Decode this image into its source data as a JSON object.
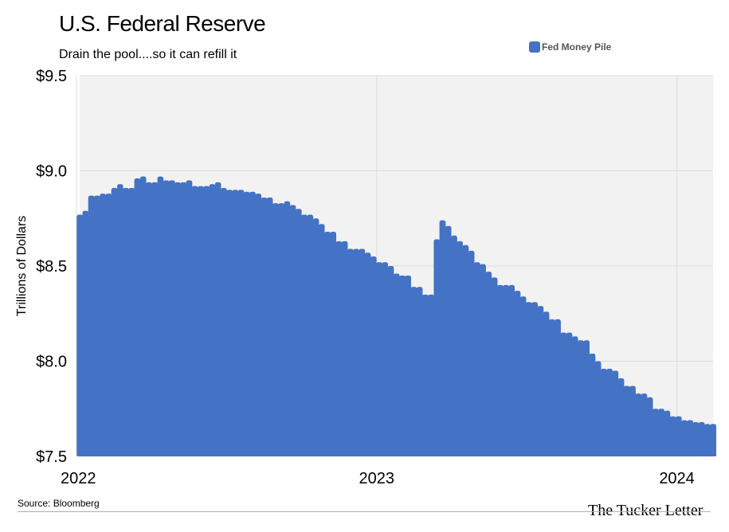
{
  "header": {
    "title": "U.S. Federal Reserve",
    "subtitle": "Drain the pool....so it can refill it"
  },
  "footer": {
    "source": "Source: Bloomberg",
    "brand": "The Tucker Letter"
  },
  "colors": {
    "series": "#4472c4",
    "plot_background": "#f2f2f2",
    "grid": "#dcdcdc"
  },
  "chart_data": {
    "type": "bar",
    "title": "U.S. Federal Reserve",
    "subtitle": "Drain the pool....so it can refill it",
    "ylabel": "Trillions of Dollars",
    "xlabel": "",
    "ylim": [
      7.5,
      9.5
    ],
    "yticks": [
      7.5,
      8.0,
      8.5,
      9.0,
      9.5
    ],
    "ytick_labels": [
      "$7.5",
      "$8.0",
      "$8.5",
      "$9.0",
      "$9.5"
    ],
    "xticks": [
      "2022",
      "2023",
      "2024"
    ],
    "xlim": [
      "2022-01-05",
      "2024-02-14"
    ],
    "grid": true,
    "legend_position": "top-right",
    "series": [
      {
        "name": "Fed Money Pile",
        "x": [
          "2022-01-05",
          "2022-01-12",
          "2022-01-19",
          "2022-01-26",
          "2022-02-02",
          "2022-02-09",
          "2022-02-16",
          "2022-02-23",
          "2022-03-02",
          "2022-03-09",
          "2022-03-16",
          "2022-03-23",
          "2022-03-30",
          "2022-04-06",
          "2022-04-13",
          "2022-04-20",
          "2022-04-27",
          "2022-05-04",
          "2022-05-11",
          "2022-05-18",
          "2022-05-25",
          "2022-06-01",
          "2022-06-08",
          "2022-06-15",
          "2022-06-22",
          "2022-06-29",
          "2022-07-06",
          "2022-07-13",
          "2022-07-20",
          "2022-07-27",
          "2022-08-03",
          "2022-08-10",
          "2022-08-17",
          "2022-08-24",
          "2022-08-31",
          "2022-09-07",
          "2022-09-14",
          "2022-09-21",
          "2022-09-28",
          "2022-10-05",
          "2022-10-12",
          "2022-10-19",
          "2022-10-26",
          "2022-11-02",
          "2022-11-09",
          "2022-11-16",
          "2022-11-23",
          "2022-11-30",
          "2022-12-07",
          "2022-12-14",
          "2022-12-21",
          "2022-12-28",
          "2023-01-04",
          "2023-01-11",
          "2023-01-18",
          "2023-01-25",
          "2023-02-01",
          "2023-02-08",
          "2023-02-15",
          "2023-02-22",
          "2023-03-01",
          "2023-03-08",
          "2023-03-15",
          "2023-03-22",
          "2023-03-29",
          "2023-04-05",
          "2023-04-12",
          "2023-04-19",
          "2023-04-26",
          "2023-05-03",
          "2023-05-10",
          "2023-05-17",
          "2023-05-24",
          "2023-05-31",
          "2023-06-07",
          "2023-06-14",
          "2023-06-21",
          "2023-06-28",
          "2023-07-05",
          "2023-07-12",
          "2023-07-19",
          "2023-07-26",
          "2023-08-02",
          "2023-08-09",
          "2023-08-16",
          "2023-08-23",
          "2023-08-30",
          "2023-09-06",
          "2023-09-13",
          "2023-09-20",
          "2023-09-27",
          "2023-10-04",
          "2023-10-11",
          "2023-10-18",
          "2023-10-25",
          "2023-11-01",
          "2023-11-08",
          "2023-11-15",
          "2023-11-22",
          "2023-11-29",
          "2023-12-06",
          "2023-12-13",
          "2023-12-20",
          "2023-12-27",
          "2024-01-03",
          "2024-01-10",
          "2024-01-17",
          "2024-01-24",
          "2024-01-31",
          "2024-02-07",
          "2024-02-14"
        ],
        "values": [
          8.77,
          8.79,
          8.87,
          8.87,
          8.88,
          8.88,
          8.91,
          8.93,
          8.91,
          8.91,
          8.96,
          8.97,
          8.94,
          8.94,
          8.97,
          8.95,
          8.95,
          8.94,
          8.94,
          8.95,
          8.92,
          8.92,
          8.92,
          8.93,
          8.94,
          8.91,
          8.9,
          8.9,
          8.9,
          8.89,
          8.89,
          8.88,
          8.86,
          8.86,
          8.83,
          8.83,
          8.84,
          8.82,
          8.8,
          8.77,
          8.77,
          8.75,
          8.72,
          8.68,
          8.68,
          8.63,
          8.63,
          8.59,
          8.59,
          8.59,
          8.57,
          8.55,
          8.52,
          8.52,
          8.5,
          8.46,
          8.45,
          8.45,
          8.39,
          8.39,
          8.35,
          8.35,
          8.64,
          8.74,
          8.71,
          8.66,
          8.63,
          8.61,
          8.58,
          8.52,
          8.51,
          8.47,
          8.44,
          8.4,
          8.4,
          8.4,
          8.37,
          8.34,
          8.31,
          8.31,
          8.29,
          8.26,
          8.22,
          8.22,
          8.15,
          8.15,
          8.13,
          8.11,
          8.11,
          8.04,
          8.0,
          7.96,
          7.96,
          7.95,
          7.91,
          7.87,
          7.87,
          7.83,
          7.83,
          7.81,
          7.75,
          7.75,
          7.74,
          7.71,
          7.71,
          7.69,
          7.69,
          7.68,
          7.68,
          7.67,
          7.67
        ]
      }
    ]
  }
}
